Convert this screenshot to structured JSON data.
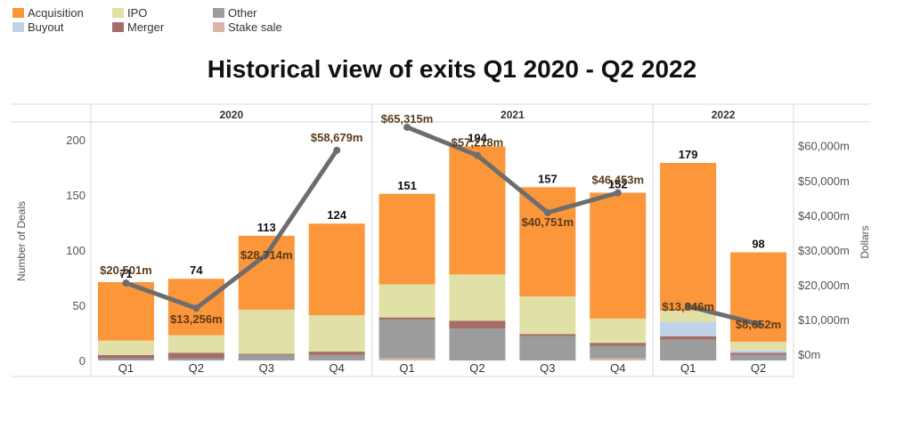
{
  "legend": {
    "items": [
      {
        "label": "Acquisition",
        "color": "#fb963b"
      },
      {
        "label": "IPO",
        "color": "#e1e0a6"
      },
      {
        "label": "Other",
        "color": "#9c9c9c"
      },
      {
        "label": "Buyout",
        "color": "#bfd2ea"
      },
      {
        "label": "Merger",
        "color": "#a46d67"
      },
      {
        "label": "Stake sale",
        "color": "#d9b5a8"
      }
    ]
  },
  "chart_data": {
    "type": "bar",
    "title": "Historical view of exits Q1 2020 - Q2 2022",
    "ylabel": "Number of Deals",
    "y2label": "Dollars",
    "ylim": [
      0,
      225
    ],
    "y2lim": [
      0,
      70000
    ],
    "yticks": [
      "0",
      "50",
      "100",
      "150",
      "200"
    ],
    "y2ticks": [
      "$0m",
      "$10,000m",
      "$20,000m",
      "$30,000m",
      "$40,000m",
      "$50,000m",
      "$60,000m"
    ],
    "years": [
      {
        "label": "2020",
        "count": 4
      },
      {
        "label": "2021",
        "count": 4
      },
      {
        "label": "2022",
        "count": 2
      }
    ],
    "categories": [
      "Q1",
      "Q2",
      "Q3",
      "Q4",
      "Q1",
      "Q2",
      "Q3",
      "Q4",
      "Q1",
      "Q2"
    ],
    "stack_order": [
      "Stake sale",
      "Other",
      "Merger",
      "Buyout",
      "IPO",
      "Acquisition"
    ],
    "series": [
      {
        "name": "Stake sale",
        "color": "#d9b5a8",
        "values": [
          0,
          0,
          0,
          0,
          2,
          0,
          0,
          2,
          0,
          0
        ]
      },
      {
        "name": "Other",
        "color": "#9c9c9c",
        "values": [
          2,
          2,
          5,
          5,
          35,
          29,
          22,
          11,
          19,
          5
        ]
      },
      {
        "name": "Merger",
        "color": "#a46d67",
        "values": [
          3,
          5,
          1,
          3,
          2,
          7,
          2,
          3,
          3,
          2
        ]
      },
      {
        "name": "Buyout",
        "color": "#bfd2ea",
        "values": [
          0,
          0,
          0,
          0,
          0,
          0,
          0,
          0,
          13,
          2
        ]
      },
      {
        "name": "IPO",
        "color": "#e1e0a6",
        "values": [
          13,
          16,
          40,
          33,
          30,
          42,
          34,
          22,
          10,
          8
        ]
      },
      {
        "name": "Acquisition",
        "color": "#fb963b",
        "values": [
          53,
          51,
          67,
          83,
          82,
          116,
          99,
          114,
          134,
          81
        ]
      }
    ],
    "totals": [
      "71",
      "74",
      "113",
      "124",
      "151",
      "194",
      "157",
      "152",
      "179",
      "98"
    ],
    "line": {
      "name": "Dollars",
      "color": "#6d6d6d",
      "values": [
        20501,
        13256,
        28714,
        58679,
        65315,
        57218,
        40751,
        46453,
        13846,
        8652
      ],
      "labels": [
        "$20,501m",
        "$13,256m",
        "$28,714m",
        "$58,679m",
        "$65,315m",
        "$57,218m",
        "$40,751m",
        "$46,453m",
        "$13,846m",
        "$8,652m"
      ],
      "segments": [
        [
          0,
          3
        ],
        [
          4,
          7
        ],
        [
          8,
          9
        ]
      ]
    }
  }
}
